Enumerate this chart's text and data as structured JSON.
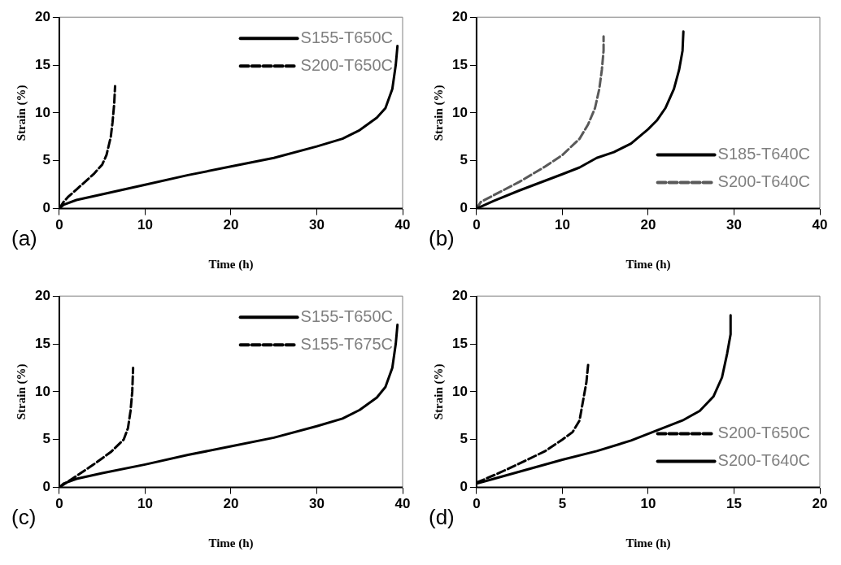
{
  "chart_data": [
    {
      "type": "line",
      "xlabel": "Time (h)",
      "ylabel": "Strain (%)",
      "xlim": [
        0,
        40
      ],
      "xticks": [
        0,
        10,
        20,
        30,
        40
      ],
      "ylim": [
        0,
        20
      ],
      "yticks": [
        0,
        5,
        10,
        15,
        20
      ],
      "grid": false,
      "legend": "top right",
      "marker": "none",
      "annotations": [
        "(a)"
      ],
      "series": [
        {
          "name": "S155-T650C",
          "color": "#000000",
          "line_style": "solid",
          "x": [
            0,
            0.5,
            2,
            5,
            10,
            15,
            20,
            25,
            30,
            33,
            35,
            37,
            38,
            38.8,
            39.2,
            39.4
          ],
          "values": [
            0,
            0.4,
            0.9,
            1.5,
            2.5,
            3.5,
            4.4,
            5.3,
            6.5,
            7.3,
            8.2,
            9.5,
            10.5,
            12.5,
            15,
            17
          ]
        },
        {
          "name": "S200-T650C",
          "color": "#000000",
          "line_style": "dashed",
          "x": [
            0,
            0.5,
            1,
            2,
            4,
            5,
            5.5,
            6,
            6.2,
            6.4,
            6.5
          ],
          "values": [
            0,
            0.7,
            1.2,
            2,
            3.6,
            4.6,
            5.6,
            7.5,
            9,
            11,
            12.8
          ]
        }
      ]
    },
    {
      "type": "line",
      "xlabel": "Time (h)",
      "ylabel": "Strain (%)",
      "xlim": [
        0,
        40
      ],
      "xticks": [
        0,
        10,
        20,
        30,
        40
      ],
      "ylim": [
        0,
        20
      ],
      "yticks": [
        0,
        5,
        10,
        15,
        20
      ],
      "grid": false,
      "legend": "bottom right",
      "marker": "none",
      "annotations": [
        "(b)"
      ],
      "series": [
        {
          "name": "S185-T640C",
          "color": "#000000",
          "line_style": "solid",
          "x": [
            0,
            2,
            5,
            10,
            12,
            14,
            16,
            18,
            20,
            21,
            22,
            23,
            23.6,
            24,
            24.1
          ],
          "values": [
            0,
            0.8,
            1.9,
            3.6,
            4.3,
            5.3,
            5.9,
            6.8,
            8.3,
            9.2,
            10.5,
            12.5,
            14.5,
            16.5,
            18.5
          ]
        },
        {
          "name": "S200-T640C",
          "color": "#595959",
          "line_style": "dashed",
          "x": [
            0,
            0.5,
            2,
            5,
            8,
            10,
            12,
            13,
            13.8,
            14.3,
            14.6,
            14.8,
            14.8
          ],
          "values": [
            0,
            0.7,
            1.4,
            2.8,
            4.4,
            5.6,
            7.3,
            8.8,
            10.5,
            12.5,
            14.5,
            16.5,
            18
          ]
        }
      ]
    },
    {
      "type": "line",
      "xlabel": "Time (h)",
      "ylabel": "Strain (%)",
      "xlim": [
        0,
        40
      ],
      "xticks": [
        0,
        10,
        20,
        30,
        40
      ],
      "ylim": [
        0,
        20
      ],
      "yticks": [
        0,
        5,
        10,
        15,
        20
      ],
      "grid": false,
      "legend": "top right",
      "marker": "none",
      "annotations": [
        "(c)"
      ],
      "series": [
        {
          "name": "S155-T650C",
          "color": "#000000",
          "line_style": "solid",
          "x": [
            0,
            0.5,
            2,
            5,
            10,
            15,
            20,
            25,
            30,
            33,
            35,
            37,
            38,
            38.8,
            39.2,
            39.4
          ],
          "values": [
            0,
            0.4,
            0.9,
            1.5,
            2.4,
            3.4,
            4.3,
            5.2,
            6.4,
            7.2,
            8.1,
            9.4,
            10.5,
            12.5,
            15,
            17
          ]
        },
        {
          "name": "S155-T675C",
          "color": "#000000",
          "line_style": "dashed",
          "x": [
            0,
            1,
            2,
            4,
            6,
            7.5,
            8,
            8.3,
            8.5,
            8.6
          ],
          "values": [
            0,
            0.6,
            1.2,
            2.4,
            3.7,
            5,
            6.2,
            8,
            10,
            12.5
          ]
        }
      ]
    },
    {
      "type": "line",
      "xlabel": "Time (h)",
      "ylabel": "Strain (%)",
      "xlim": [
        0,
        20
      ],
      "xticks": [
        0,
        5,
        10,
        15,
        20
      ],
      "ylim": [
        0,
        20
      ],
      "yticks": [
        0,
        5,
        10,
        15,
        20
      ],
      "grid": false,
      "legend": "bottom right",
      "marker": "none",
      "annotations": [
        "(d)"
      ],
      "series": [
        {
          "name": "S200-T650C",
          "color": "#000000",
          "line_style": "dashed",
          "x": [
            0,
            1.3,
            2.5,
            4,
            5,
            5.6,
            6,
            6.2,
            6.4,
            6.5
          ],
          "values": [
            0.5,
            1.5,
            2.5,
            3.8,
            5,
            5.8,
            7,
            9,
            11,
            12.8
          ]
        },
        {
          "name": "S200-T640C",
          "color": "#000000",
          "line_style": "solid",
          "x": [
            0,
            1,
            3,
            5,
            7,
            9,
            10,
            11,
            12,
            13,
            13.8,
            14.3,
            14.6,
            14.8,
            14.8
          ],
          "values": [
            0.4,
            0.9,
            1.9,
            2.9,
            3.8,
            4.9,
            5.6,
            6.3,
            7,
            8,
            9.5,
            11.5,
            14,
            16,
            18
          ]
        }
      ]
    }
  ]
}
